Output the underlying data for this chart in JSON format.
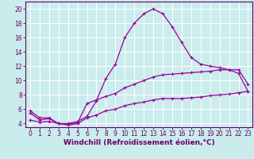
{
  "xlabel": "Windchill (Refroidissement éolien,°C)",
  "background_color": "#cbecec",
  "grid_color": "#ffffff",
  "line_color": "#990099",
  "xlim": [
    -0.5,
    23.5
  ],
  "ylim": [
    3.5,
    21.0
  ],
  "xticks": [
    0,
    1,
    2,
    3,
    4,
    5,
    6,
    7,
    8,
    9,
    10,
    11,
    12,
    13,
    14,
    15,
    16,
    17,
    18,
    19,
    20,
    21,
    22,
    23
  ],
  "yticks": [
    4,
    6,
    8,
    10,
    12,
    14,
    16,
    18,
    20
  ],
  "line1_x": [
    0,
    1,
    2,
    3,
    4,
    5,
    6,
    7,
    8,
    9,
    10,
    11,
    12,
    13,
    14,
    15,
    16,
    17,
    18,
    19,
    20,
    21,
    22,
    23
  ],
  "line1_y": [
    5.8,
    4.8,
    4.8,
    4.0,
    4.0,
    4.3,
    5.0,
    7.2,
    10.3,
    12.3,
    16.0,
    18.0,
    19.3,
    20.0,
    19.3,
    17.5,
    15.3,
    13.2,
    12.3,
    12.0,
    11.8,
    11.5,
    11.0,
    8.5
  ],
  "line2_x": [
    0,
    1,
    2,
    3,
    4,
    5,
    6,
    7,
    8,
    9,
    10,
    11,
    12,
    13,
    14,
    15,
    16,
    17,
    18,
    19,
    20,
    21,
    22,
    23
  ],
  "line2_y": [
    5.5,
    4.5,
    4.7,
    4.0,
    3.9,
    4.1,
    6.8,
    7.3,
    7.8,
    8.2,
    9.0,
    9.5,
    10.0,
    10.5,
    10.8,
    10.9,
    11.0,
    11.1,
    11.2,
    11.3,
    11.5,
    11.5,
    11.5,
    9.5
  ],
  "line3_x": [
    0,
    1,
    2,
    3,
    4,
    5,
    6,
    7,
    8,
    9,
    10,
    11,
    12,
    13,
    14,
    15,
    16,
    17,
    18,
    19,
    20,
    21,
    22,
    23
  ],
  "line3_y": [
    4.5,
    4.2,
    4.3,
    4.0,
    3.8,
    4.0,
    4.8,
    5.2,
    5.8,
    6.0,
    6.5,
    6.8,
    7.0,
    7.3,
    7.5,
    7.5,
    7.5,
    7.6,
    7.7,
    7.9,
    8.0,
    8.1,
    8.3,
    8.5
  ],
  "label_fontsize": 6.5,
  "tick_fontsize": 5.5,
  "marker": "+"
}
